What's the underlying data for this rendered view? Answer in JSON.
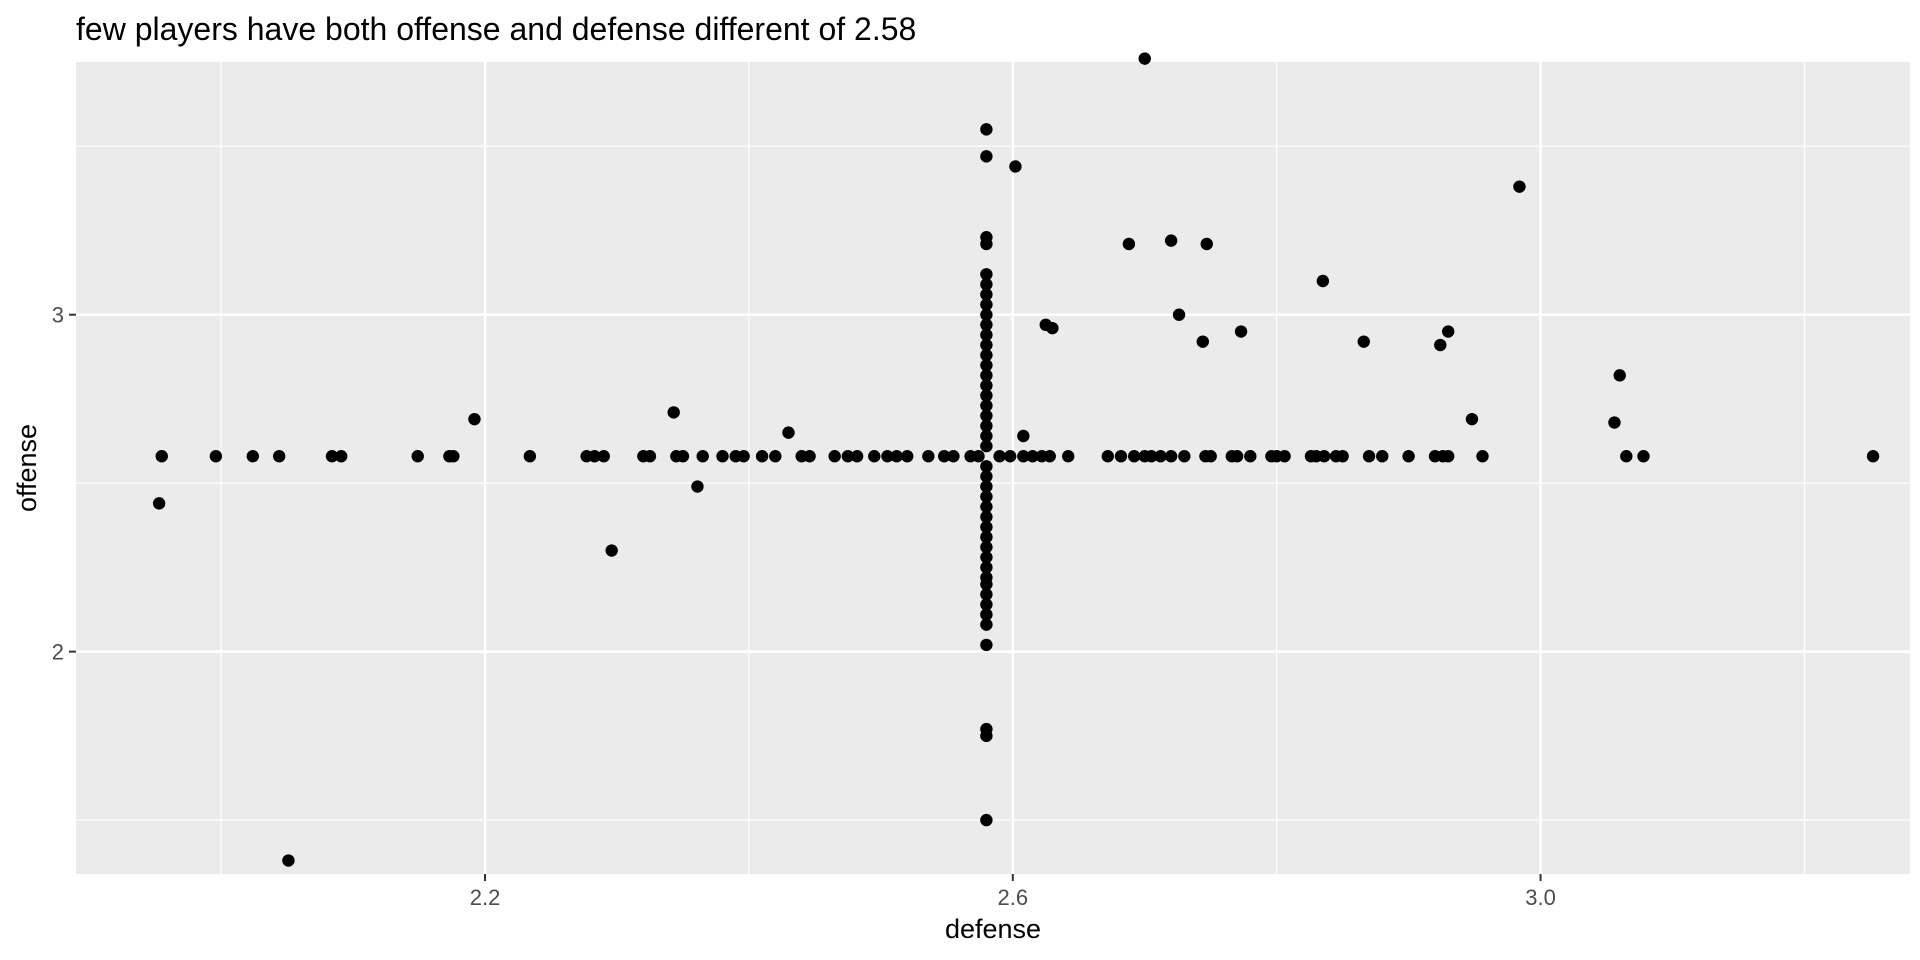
{
  "chart_data": {
    "type": "scatter",
    "title": "few players have both offense and defense different of 2.58",
    "xlabel": "defense",
    "ylabel": "offense",
    "xlim": [
      1.89,
      3.28
    ],
    "ylim": [
      1.34,
      3.75
    ],
    "x_ticks": [
      {
        "value": 2.2,
        "label": "2.2"
      },
      {
        "value": 2.6,
        "label": "2.6"
      },
      {
        "value": 3.0,
        "label": "3.0"
      }
    ],
    "y_ticks": [
      {
        "value": 2,
        "label": "2"
      },
      {
        "value": 3,
        "label": "3"
      }
    ],
    "grid": true,
    "legend": "none",
    "colors": {
      "panel": "#ebebeb",
      "grid": "#ffffff",
      "point": "#000000"
    },
    "points": [
      {
        "x": 1.955,
        "y": 2.58
      },
      {
        "x": 1.996,
        "y": 2.58
      },
      {
        "x": 2.024,
        "y": 2.58
      },
      {
        "x": 2.044,
        "y": 2.58
      },
      {
        "x": 2.084,
        "y": 2.58
      },
      {
        "x": 2.091,
        "y": 2.58
      },
      {
        "x": 2.149,
        "y": 2.58
      },
      {
        "x": 2.173,
        "y": 2.58
      },
      {
        "x": 2.176,
        "y": 2.58
      },
      {
        "x": 2.234,
        "y": 2.58
      },
      {
        "x": 2.277,
        "y": 2.58
      },
      {
        "x": 2.283,
        "y": 2.58
      },
      {
        "x": 2.29,
        "y": 2.58
      },
      {
        "x": 2.32,
        "y": 2.58
      },
      {
        "x": 2.325,
        "y": 2.58
      },
      {
        "x": 2.345,
        "y": 2.58
      },
      {
        "x": 2.35,
        "y": 2.58
      },
      {
        "x": 2.365,
        "y": 2.58
      },
      {
        "x": 2.38,
        "y": 2.58
      },
      {
        "x": 2.39,
        "y": 2.58
      },
      {
        "x": 2.396,
        "y": 2.58
      },
      {
        "x": 2.41,
        "y": 2.58
      },
      {
        "x": 2.42,
        "y": 2.58
      },
      {
        "x": 2.44,
        "y": 2.58
      },
      {
        "x": 2.446,
        "y": 2.58
      },
      {
        "x": 2.465,
        "y": 2.58
      },
      {
        "x": 2.475,
        "y": 2.58
      },
      {
        "x": 2.482,
        "y": 2.58
      },
      {
        "x": 2.495,
        "y": 2.58
      },
      {
        "x": 2.505,
        "y": 2.58
      },
      {
        "x": 2.512,
        "y": 2.58
      },
      {
        "x": 2.52,
        "y": 2.58
      },
      {
        "x": 2.536,
        "y": 2.58
      },
      {
        "x": 2.548,
        "y": 2.58
      },
      {
        "x": 2.555,
        "y": 2.58
      },
      {
        "x": 2.568,
        "y": 2.58
      },
      {
        "x": 2.574,
        "y": 2.58
      },
      {
        "x": 2.59,
        "y": 2.58
      },
      {
        "x": 2.598,
        "y": 2.58
      },
      {
        "x": 2.608,
        "y": 2.58
      },
      {
        "x": 2.615,
        "y": 2.58
      },
      {
        "x": 2.622,
        "y": 2.58
      },
      {
        "x": 2.628,
        "y": 2.58
      },
      {
        "x": 2.642,
        "y": 2.58
      },
      {
        "x": 2.672,
        "y": 2.58
      },
      {
        "x": 2.682,
        "y": 2.58
      },
      {
        "x": 2.692,
        "y": 2.58
      },
      {
        "x": 2.7,
        "y": 2.58
      },
      {
        "x": 2.705,
        "y": 2.58
      },
      {
        "x": 2.712,
        "y": 2.58
      },
      {
        "x": 2.72,
        "y": 2.58
      },
      {
        "x": 2.73,
        "y": 2.58
      },
      {
        "x": 2.746,
        "y": 2.58
      },
      {
        "x": 2.75,
        "y": 2.58
      },
      {
        "x": 2.766,
        "y": 2.58
      },
      {
        "x": 2.77,
        "y": 2.58
      },
      {
        "x": 2.78,
        "y": 2.58
      },
      {
        "x": 2.796,
        "y": 2.58
      },
      {
        "x": 2.8,
        "y": 2.58
      },
      {
        "x": 2.806,
        "y": 2.58
      },
      {
        "x": 2.826,
        "y": 2.58
      },
      {
        "x": 2.83,
        "y": 2.58
      },
      {
        "x": 2.836,
        "y": 2.58
      },
      {
        "x": 2.845,
        "y": 2.58
      },
      {
        "x": 2.85,
        "y": 2.58
      },
      {
        "x": 2.87,
        "y": 2.58
      },
      {
        "x": 2.88,
        "y": 2.58
      },
      {
        "x": 2.9,
        "y": 2.58
      },
      {
        "x": 2.92,
        "y": 2.58
      },
      {
        "x": 2.926,
        "y": 2.58
      },
      {
        "x": 2.93,
        "y": 2.58
      },
      {
        "x": 2.956,
        "y": 2.58
      },
      {
        "x": 3.065,
        "y": 2.58
      },
      {
        "x": 3.078,
        "y": 2.58
      },
      {
        "x": 3.252,
        "y": 2.58
      },
      {
        "x": 1.953,
        "y": 2.44
      },
      {
        "x": 2.051,
        "y": 1.38
      },
      {
        "x": 2.192,
        "y": 2.69
      },
      {
        "x": 2.296,
        "y": 2.3
      },
      {
        "x": 2.343,
        "y": 2.71
      },
      {
        "x": 2.361,
        "y": 2.49
      },
      {
        "x": 2.43,
        "y": 2.65
      },
      {
        "x": 2.602,
        "y": 3.44
      },
      {
        "x": 2.608,
        "y": 2.64
      },
      {
        "x": 2.688,
        "y": 3.21
      },
      {
        "x": 2.7,
        "y": 3.76
      },
      {
        "x": 2.72,
        "y": 3.22
      },
      {
        "x": 2.726,
        "y": 3.0
      },
      {
        "x": 2.744,
        "y": 2.92
      },
      {
        "x": 2.747,
        "y": 3.21
      },
      {
        "x": 2.773,
        "y": 2.95
      },
      {
        "x": 2.835,
        "y": 3.1
      },
      {
        "x": 2.866,
        "y": 2.92
      },
      {
        "x": 2.625,
        "y": 2.97
      },
      {
        "x": 2.63,
        "y": 2.96
      },
      {
        "x": 2.924,
        "y": 2.91
      },
      {
        "x": 2.93,
        "y": 2.95
      },
      {
        "x": 2.948,
        "y": 2.69
      },
      {
        "x": 2.984,
        "y": 3.38
      },
      {
        "x": 3.056,
        "y": 2.68
      },
      {
        "x": 3.06,
        "y": 2.82
      },
      {
        "x": 2.58,
        "y": 1.5
      },
      {
        "x": 2.58,
        "y": 1.75
      },
      {
        "x": 2.58,
        "y": 1.77
      },
      {
        "x": 2.58,
        "y": 2.02
      },
      {
        "x": 2.58,
        "y": 2.08
      },
      {
        "x": 2.58,
        "y": 2.11
      },
      {
        "x": 2.58,
        "y": 2.14
      },
      {
        "x": 2.58,
        "y": 2.17
      },
      {
        "x": 2.58,
        "y": 2.2
      },
      {
        "x": 2.58,
        "y": 2.22
      },
      {
        "x": 2.58,
        "y": 2.25
      },
      {
        "x": 2.58,
        "y": 2.28
      },
      {
        "x": 2.58,
        "y": 2.31
      },
      {
        "x": 2.58,
        "y": 2.34
      },
      {
        "x": 2.58,
        "y": 2.37
      },
      {
        "x": 2.58,
        "y": 2.4
      },
      {
        "x": 2.58,
        "y": 2.43
      },
      {
        "x": 2.58,
        "y": 2.46
      },
      {
        "x": 2.58,
        "y": 2.49
      },
      {
        "x": 2.58,
        "y": 2.52
      },
      {
        "x": 2.58,
        "y": 2.55
      },
      {
        "x": 2.58,
        "y": 2.61
      },
      {
        "x": 2.58,
        "y": 2.64
      },
      {
        "x": 2.58,
        "y": 2.67
      },
      {
        "x": 2.58,
        "y": 2.7
      },
      {
        "x": 2.58,
        "y": 2.73
      },
      {
        "x": 2.58,
        "y": 2.76
      },
      {
        "x": 2.58,
        "y": 2.79
      },
      {
        "x": 2.58,
        "y": 2.82
      },
      {
        "x": 2.58,
        "y": 2.85
      },
      {
        "x": 2.58,
        "y": 2.88
      },
      {
        "x": 2.58,
        "y": 2.91
      },
      {
        "x": 2.58,
        "y": 2.94
      },
      {
        "x": 2.58,
        "y": 2.97
      },
      {
        "x": 2.58,
        "y": 3.0
      },
      {
        "x": 2.58,
        "y": 3.03
      },
      {
        "x": 2.58,
        "y": 3.06
      },
      {
        "x": 2.58,
        "y": 3.09
      },
      {
        "x": 2.58,
        "y": 3.12
      },
      {
        "x": 2.58,
        "y": 3.21
      },
      {
        "x": 2.58,
        "y": 3.23
      },
      {
        "x": 2.58,
        "y": 3.47
      },
      {
        "x": 2.58,
        "y": 3.55
      }
    ]
  }
}
